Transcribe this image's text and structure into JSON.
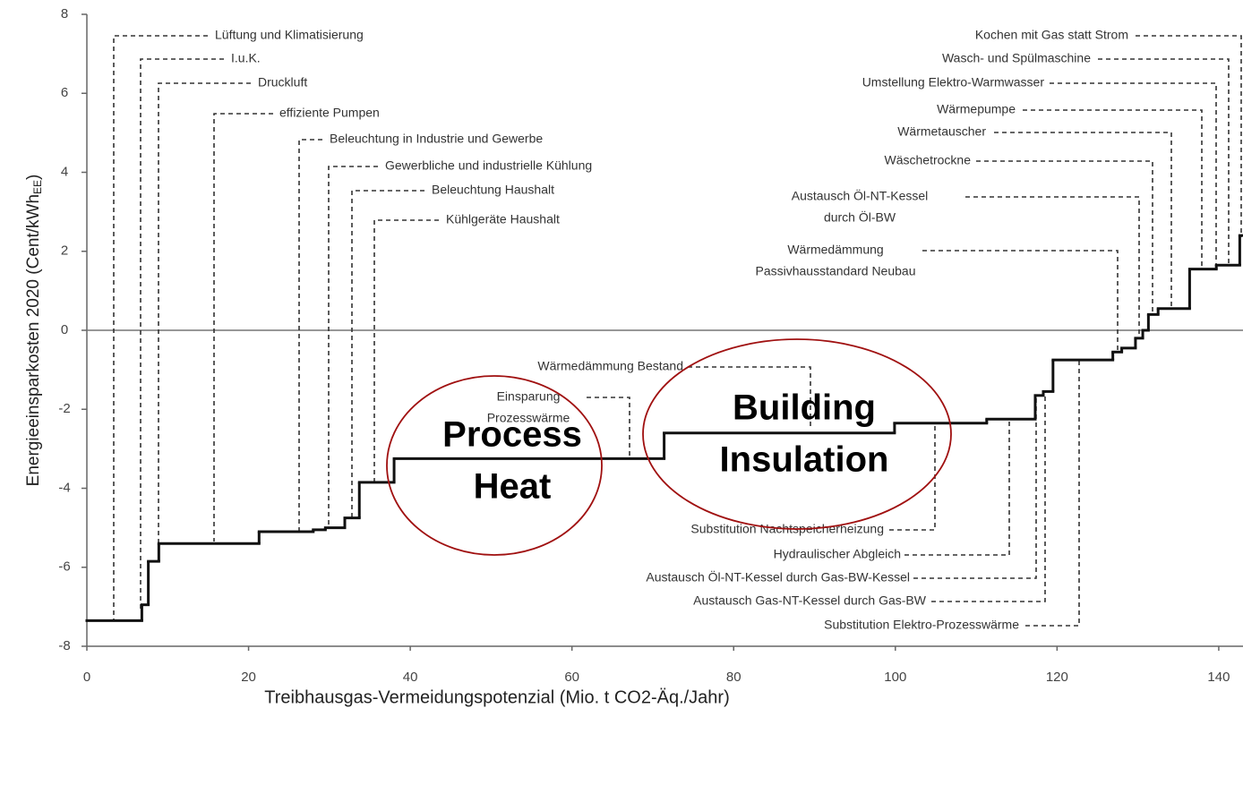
{
  "chart_data": {
    "type": "step",
    "xlabel": "Treibhausgas-Vermeidungspotenzial (Mio. t CO2-Äq./Jahr)",
    "ylabel": {
      "main": "Energieeinsparkosten 2020 (Cent/kWh",
      "sub": "EE",
      "close": ")"
    },
    "x": [
      0,
      6.8,
      7.6,
      8.9,
      21.3,
      28,
      29.5,
      31.9,
      33.7,
      38.0,
      71.4,
      99.9,
      111.3,
      117.3,
      118.3,
      119.5,
      126.9,
      128.0,
      129.7,
      130.6,
      131.3,
      132.5,
      136.4,
      139.7,
      142.6
    ],
    "values": [
      -7.35,
      -6.95,
      -5.85,
      -5.4,
      -5.1,
      -5.05,
      -5.0,
      -4.75,
      -3.85,
      -3.25,
      -2.6,
      -2.35,
      -2.25,
      -1.65,
      -1.55,
      -0.75,
      -0.55,
      -0.45,
      -0.2,
      0.0,
      0.4,
      0.55,
      1.55,
      1.65,
      2.4
    ],
    "color": "#111111",
    "xlim": [
      0,
      143
    ],
    "ylim": [
      -8,
      8
    ],
    "xticks": [
      0,
      20,
      40,
      60,
      80,
      100,
      120,
      140
    ],
    "yticks": [
      -8,
      -6,
      -4,
      -2,
      0,
      2,
      4,
      6,
      8
    ],
    "annotations": [
      {
        "lines": [
          "Lüftung und Klimatisierung"
        ]
      },
      {
        "lines": [
          "I.u.K."
        ]
      },
      {
        "lines": [
          "Druckluft"
        ]
      },
      {
        "lines": [
          "effiziente Pumpen"
        ]
      },
      {
        "lines": [
          "Beleuchtung in Industrie und Gewerbe"
        ]
      },
      {
        "lines": [
          "Gewerbliche und industrielle Kühlung"
        ]
      },
      {
        "lines": [
          "Beleuchtung Haushalt"
        ]
      },
      {
        "lines": [
          "Kühlgeräte Haushalt"
        ]
      },
      {
        "lines": [
          "Wärmedämmung Bestand"
        ]
      },
      {
        "lines": [
          "Einsparung",
          "Prozesswärme"
        ]
      },
      {
        "lines": [
          "Substitution Nachtspeicherheizung"
        ]
      },
      {
        "lines": [
          "Hydraulischer Abgleich"
        ]
      },
      {
        "lines": [
          "Austausch Öl-NT-Kessel durch Gas-BW-Kessel"
        ]
      },
      {
        "lines": [
          "Austausch Gas-NT-Kessel durch Gas-BW"
        ]
      },
      {
        "lines": [
          "Substitution Elektro-Prozesswärme"
        ]
      },
      {
        "lines": [
          "Kochen mit Gas statt Strom"
        ]
      },
      {
        "lines": [
          "Wasch- und Spülmaschine"
        ]
      },
      {
        "lines": [
          "Umstellung Elektro-Warmwasser"
        ]
      },
      {
        "lines": [
          "Wärmepumpe"
        ]
      },
      {
        "lines": [
          "Wärmetauscher"
        ]
      },
      {
        "lines": [
          "Wäschetrockne"
        ]
      },
      {
        "lines": [
          "Austausch Öl-NT-Kessel",
          "durch Öl-BW"
        ]
      },
      {
        "lines": [
          "Wärmedämmung",
          "Passivhausstandard Neubau"
        ]
      }
    ],
    "highlights": [
      {
        "lines": [
          "Process",
          "Heat"
        ],
        "color": "#a01010"
      },
      {
        "lines": [
          "Building",
          "Insulation"
        ],
        "color": "#a01010"
      }
    ]
  }
}
